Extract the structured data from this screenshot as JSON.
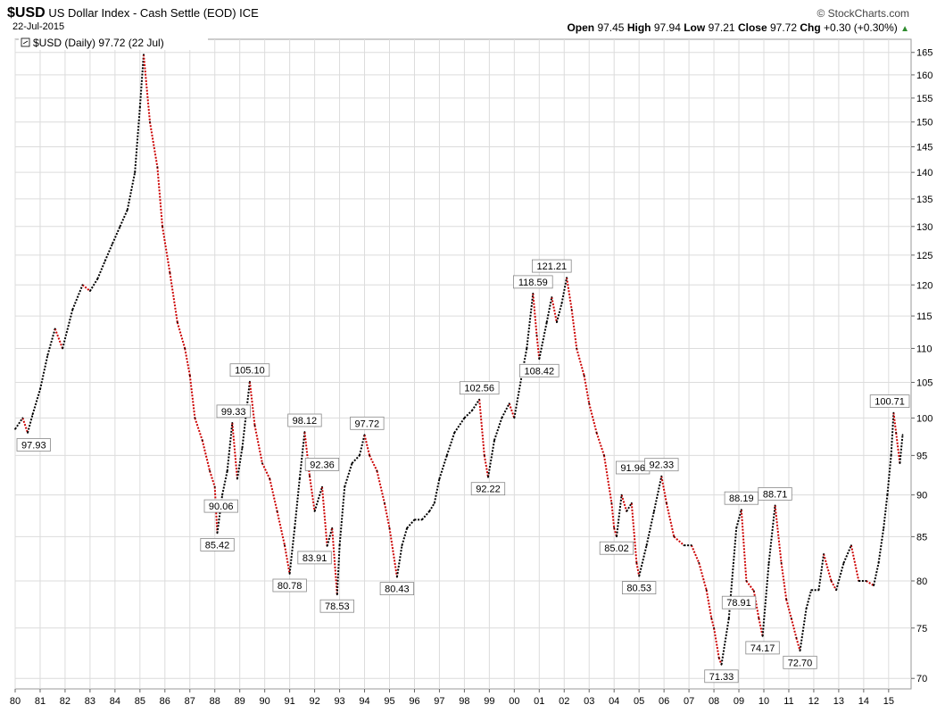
{
  "header": {
    "symbol": "$USD",
    "name": "US Dollar Index - Cash Settle (EOD)",
    "exchange": "ICE",
    "date": "22-Jul-2015",
    "brand": "© StockCharts.com",
    "open_label": "Open",
    "open": "97.45",
    "high_label": "High",
    "high": "97.94",
    "low_label": "Low",
    "low": "97.21",
    "close_label": "Close",
    "close": "97.72",
    "chg_label": "Chg",
    "chg": "+0.30 (+0.30%)",
    "chg_icon": "triangle-up-icon",
    "up_color": "#2e8b2e"
  },
  "chart_data": {
    "type": "line",
    "title": "$USD US Dollar Index - Cash Settle (EOD)",
    "legend": "$USD (Daily) 97.72 (22 Jul)",
    "legend_position": "top-left",
    "scale": "log",
    "ylim": [
      69,
      168
    ],
    "xlim": [
      1980.0,
      2015.9
    ],
    "y_ticks": [
      70,
      75,
      80,
      85,
      90,
      95,
      100,
      105,
      110,
      115,
      120,
      125,
      130,
      135,
      140,
      145,
      150,
      155,
      160,
      165
    ],
    "x_ticks": [
      {
        "year": 1980,
        "label": "80"
      },
      {
        "year": 1981,
        "label": "81"
      },
      {
        "year": 1982,
        "label": "82"
      },
      {
        "year": 1983,
        "label": "83"
      },
      {
        "year": 1984,
        "label": "84"
      },
      {
        "year": 1985,
        "label": "85"
      },
      {
        "year": 1986,
        "label": "86"
      },
      {
        "year": 1987,
        "label": "87"
      },
      {
        "year": 1988,
        "label": "88"
      },
      {
        "year": 1989,
        "label": "89"
      },
      {
        "year": 1990,
        "label": "90"
      },
      {
        "year": 1991,
        "label": "91"
      },
      {
        "year": 1992,
        "label": "92"
      },
      {
        "year": 1993,
        "label": "93"
      },
      {
        "year": 1994,
        "label": "94"
      },
      {
        "year": 1995,
        "label": "95"
      },
      {
        "year": 1996,
        "label": "96"
      },
      {
        "year": 1997,
        "label": "97"
      },
      {
        "year": 1998,
        "label": "98"
      },
      {
        "year": 1999,
        "label": "99"
      },
      {
        "year": 2000,
        "label": "00"
      },
      {
        "year": 2001,
        "label": "01"
      },
      {
        "year": 2002,
        "label": "02"
      },
      {
        "year": 2003,
        "label": "03"
      },
      {
        "year": 2004,
        "label": "04"
      },
      {
        "year": 2005,
        "label": "05"
      },
      {
        "year": 2006,
        "label": "06"
      },
      {
        "year": 2007,
        "label": "07"
      },
      {
        "year": 2008,
        "label": "08"
      },
      {
        "year": 2009,
        "label": "09"
      },
      {
        "year": 2010,
        "label": "10"
      },
      {
        "year": 2011,
        "label": "11"
      },
      {
        "year": 2012,
        "label": "12"
      },
      {
        "year": 2013,
        "label": "13"
      },
      {
        "year": 2014,
        "label": "14"
      },
      {
        "year": 2015,
        "label": "15"
      }
    ],
    "series": [
      {
        "name": "$USD",
        "colors": {
          "up": "#000000",
          "down": "#cc0000"
        },
        "points": [
          [
            1980.0,
            98.5
          ],
          [
            1980.3,
            100.0
          ],
          [
            1980.5,
            98.0
          ],
          [
            1980.7,
            100.5
          ],
          [
            1981.0,
            104.0
          ],
          [
            1981.3,
            109.0
          ],
          [
            1981.6,
            113.0
          ],
          [
            1981.9,
            110.0
          ],
          [
            1982.3,
            116.0
          ],
          [
            1982.7,
            120.0
          ],
          [
            1983.0,
            119.0
          ],
          [
            1983.3,
            121.0
          ],
          [
            1983.6,
            124.0
          ],
          [
            1983.9,
            127.0
          ],
          [
            1984.2,
            130.0
          ],
          [
            1984.5,
            133.0
          ],
          [
            1984.8,
            140.0
          ],
          [
            1985.0,
            153.0
          ],
          [
            1985.15,
            164.5
          ],
          [
            1985.4,
            150.0
          ],
          [
            1985.7,
            141.0
          ],
          [
            1985.9,
            130.0
          ],
          [
            1986.2,
            122.0
          ],
          [
            1986.5,
            114.0
          ],
          [
            1986.8,
            110.0
          ],
          [
            1987.0,
            106.0
          ],
          [
            1987.2,
            100.0
          ],
          [
            1987.5,
            97.0
          ],
          [
            1987.8,
            93.0
          ],
          [
            1988.0,
            91.0
          ],
          [
            1988.1,
            85.42
          ],
          [
            1988.3,
            90.0
          ],
          [
            1988.5,
            93.0
          ],
          [
            1988.7,
            99.33
          ],
          [
            1988.9,
            92.0
          ],
          [
            1989.1,
            96.0
          ],
          [
            1989.4,
            105.1
          ],
          [
            1989.6,
            99.0
          ],
          [
            1989.9,
            94.0
          ],
          [
            1990.2,
            92.0
          ],
          [
            1990.5,
            88.0
          ],
          [
            1990.8,
            84.0
          ],
          [
            1991.0,
            80.78
          ],
          [
            1991.2,
            86.0
          ],
          [
            1991.4,
            92.0
          ],
          [
            1991.6,
            98.12
          ],
          [
            1991.8,
            92.36
          ],
          [
            1992.0,
            88.0
          ],
          [
            1992.3,
            91.0
          ],
          [
            1992.5,
            83.91
          ],
          [
            1992.7,
            86.0
          ],
          [
            1992.9,
            78.53
          ],
          [
            1993.0,
            84.0
          ],
          [
            1993.2,
            91.0
          ],
          [
            1993.5,
            94.0
          ],
          [
            1993.8,
            95.0
          ],
          [
            1994.0,
            97.72
          ],
          [
            1994.2,
            95.0
          ],
          [
            1994.5,
            93.0
          ],
          [
            1994.8,
            89.0
          ],
          [
            1995.0,
            86.0
          ],
          [
            1995.3,
            80.43
          ],
          [
            1995.5,
            84.0
          ],
          [
            1995.7,
            86.0
          ],
          [
            1996.0,
            87.0
          ],
          [
            1996.3,
            87.0
          ],
          [
            1996.6,
            88.0
          ],
          [
            1996.8,
            89.0
          ],
          [
            1997.0,
            92.0
          ],
          [
            1997.3,
            95.0
          ],
          [
            1997.6,
            98.0
          ],
          [
            1998.0,
            100.0
          ],
          [
            1998.3,
            101.0
          ],
          [
            1998.6,
            102.56
          ],
          [
            1998.8,
            95.0
          ],
          [
            1998.95,
            92.22
          ],
          [
            1999.2,
            97.0
          ],
          [
            1999.5,
            100.0
          ],
          [
            1999.8,
            102.0
          ],
          [
            2000.0,
            100.0
          ],
          [
            2000.3,
            106.0
          ],
          [
            2000.5,
            110.0
          ],
          [
            2000.75,
            118.59
          ],
          [
            2000.9,
            112.0
          ],
          [
            2001.0,
            108.42
          ],
          [
            2001.3,
            114.0
          ],
          [
            2001.5,
            118.0
          ],
          [
            2001.7,
            114.0
          ],
          [
            2001.9,
            117.0
          ],
          [
            2002.1,
            121.21
          ],
          [
            2002.3,
            116.0
          ],
          [
            2002.5,
            110.0
          ],
          [
            2002.8,
            106.0
          ],
          [
            2003.0,
            102.0
          ],
          [
            2003.3,
            98.0
          ],
          [
            2003.6,
            95.0
          ],
          [
            2003.9,
            89.0
          ],
          [
            2004.0,
            86.0
          ],
          [
            2004.1,
            85.02
          ],
          [
            2004.3,
            90.0
          ],
          [
            2004.5,
            88.0
          ],
          [
            2004.7,
            89.0
          ],
          [
            2004.9,
            82.0
          ],
          [
            2005.0,
            80.53
          ],
          [
            2005.3,
            84.0
          ],
          [
            2005.6,
            88.0
          ],
          [
            2005.9,
            92.33
          ],
          [
            2006.1,
            89.0
          ],
          [
            2006.4,
            85.0
          ],
          [
            2006.8,
            84.0
          ],
          [
            2007.1,
            84.0
          ],
          [
            2007.4,
            82.0
          ],
          [
            2007.7,
            79.0
          ],
          [
            2007.9,
            76.0
          ],
          [
            2008.0,
            75.0
          ],
          [
            2008.2,
            72.0
          ],
          [
            2008.3,
            71.33
          ],
          [
            2008.6,
            76.0
          ],
          [
            2008.9,
            86.0
          ],
          [
            2009.1,
            88.19
          ],
          [
            2009.3,
            80.0
          ],
          [
            2009.6,
            78.91
          ],
          [
            2009.8,
            76.0
          ],
          [
            2009.95,
            74.17
          ],
          [
            2010.2,
            82.0
          ],
          [
            2010.45,
            88.71
          ],
          [
            2010.7,
            82.0
          ],
          [
            2010.9,
            78.0
          ],
          [
            2011.1,
            76.0
          ],
          [
            2011.3,
            74.0
          ],
          [
            2011.45,
            72.7
          ],
          [
            2011.7,
            77.0
          ],
          [
            2011.9,
            79.0
          ],
          [
            2012.2,
            79.0
          ],
          [
            2012.4,
            83.0
          ],
          [
            2012.7,
            80.0
          ],
          [
            2012.9,
            79.0
          ],
          [
            2013.2,
            82.0
          ],
          [
            2013.5,
            84.0
          ],
          [
            2013.8,
            80.0
          ],
          [
            2014.1,
            80.0
          ],
          [
            2014.4,
            79.5
          ],
          [
            2014.6,
            82.0
          ],
          [
            2014.8,
            86.0
          ],
          [
            2014.95,
            90.0
          ],
          [
            2015.1,
            95.0
          ],
          [
            2015.2,
            100.71
          ],
          [
            2015.3,
            98.0
          ],
          [
            2015.45,
            94.0
          ],
          [
            2015.56,
            97.72
          ]
        ]
      }
    ],
    "annotations": [
      {
        "x": 1980.5,
        "value": 97.93,
        "label": "97.93",
        "pos": "below"
      },
      {
        "x": 1988.1,
        "value": 85.42,
        "label": "85.42",
        "pos": "below"
      },
      {
        "x": 1988.25,
        "value": 90.06,
        "label": "90.06",
        "pos": "below"
      },
      {
        "x": 1988.75,
        "value": 99.33,
        "label": "99.33",
        "pos": "above"
      },
      {
        "x": 1989.4,
        "value": 105.1,
        "label": "105.10",
        "pos": "above"
      },
      {
        "x": 1991.0,
        "value": 80.78,
        "label": "80.78",
        "pos": "below"
      },
      {
        "x": 1991.6,
        "value": 98.12,
        "label": "98.12",
        "pos": "above"
      },
      {
        "x": 1992.3,
        "value": 92.36,
        "label": "92.36",
        "pos": "above"
      },
      {
        "x": 1992.0,
        "value": 83.91,
        "label": "83.91",
        "pos": "below"
      },
      {
        "x": 1992.9,
        "value": 78.53,
        "label": "78.53",
        "pos": "below"
      },
      {
        "x": 1994.1,
        "value": 97.72,
        "label": "97.72",
        "pos": "above"
      },
      {
        "x": 1995.3,
        "value": 80.43,
        "label": "80.43",
        "pos": "below"
      },
      {
        "x": 1998.6,
        "value": 102.56,
        "label": "102.56",
        "pos": "above"
      },
      {
        "x": 1998.95,
        "value": 92.22,
        "label": "92.22",
        "pos": "below"
      },
      {
        "x": 2000.75,
        "value": 118.59,
        "label": "118.59",
        "pos": "above"
      },
      {
        "x": 2001.0,
        "value": 108.42,
        "label": "108.42",
        "pos": "below"
      },
      {
        "x": 2001.5,
        "value": 121.21,
        "label": "121.21",
        "pos": "above"
      },
      {
        "x": 2004.1,
        "value": 85.02,
        "label": "85.02",
        "pos": "below"
      },
      {
        "x": 2004.75,
        "value": 91.96,
        "label": "91.96",
        "pos": "above"
      },
      {
        "x": 2005.0,
        "value": 80.53,
        "label": "80.53",
        "pos": "below"
      },
      {
        "x": 2005.9,
        "value": 92.33,
        "label": "92.33",
        "pos": "above"
      },
      {
        "x": 2008.3,
        "value": 71.33,
        "label": "71.33",
        "pos": "below"
      },
      {
        "x": 2009.1,
        "value": 88.19,
        "label": "88.19",
        "pos": "above"
      },
      {
        "x": 2009.0,
        "value": 78.91,
        "label": "78.91",
        "pos": "below"
      },
      {
        "x": 2009.95,
        "value": 74.17,
        "label": "74.17",
        "pos": "below"
      },
      {
        "x": 2010.45,
        "value": 88.71,
        "label": "88.71",
        "pos": "above"
      },
      {
        "x": 2011.45,
        "value": 72.7,
        "label": "72.70",
        "pos": "below"
      },
      {
        "x": 2015.2,
        "value": 100.71,
        "label": "100.71",
        "pos": "above"
      }
    ]
  }
}
